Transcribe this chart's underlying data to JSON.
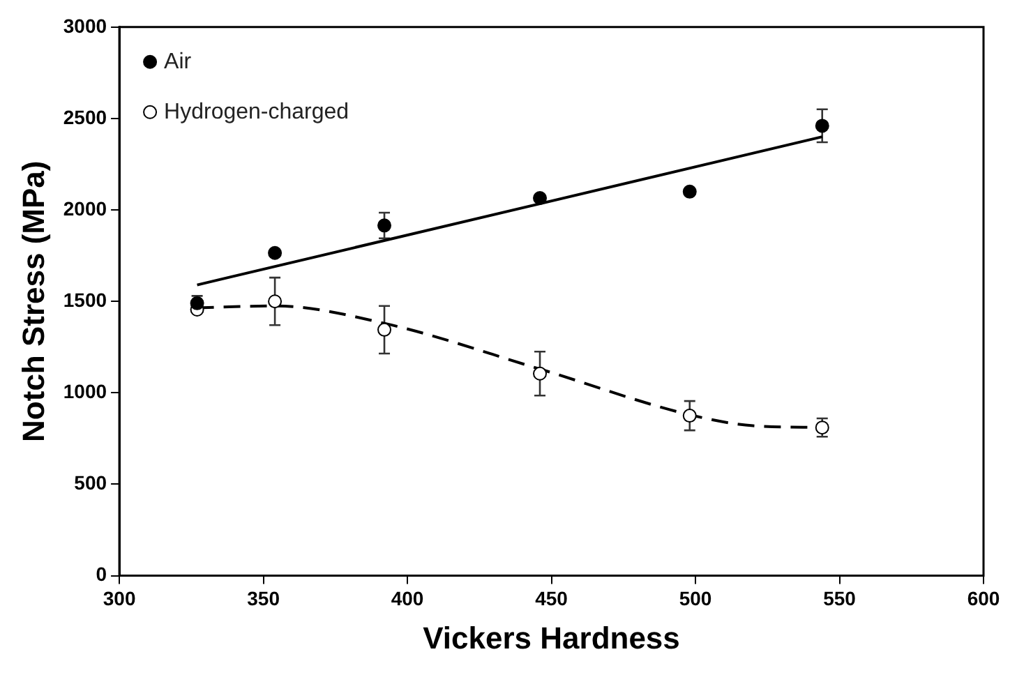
{
  "chart_data": {
    "type": "scatter",
    "xlabel": "Vickers Hardness",
    "ylabel": "Notch Stress (MPa)",
    "xlim": [
      300,
      600
    ],
    "xticks": [
      300,
      350,
      400,
      450,
      500,
      550,
      600
    ],
    "ylim": [
      0,
      3000
    ],
    "yticks": [
      0,
      500,
      1000,
      1500,
      2000,
      2500,
      3000
    ],
    "grid": false,
    "legend": "top left",
    "series": [
      {
        "name": "Air",
        "color": "#000000",
        "marker": "circle",
        "x": [
          327,
          354,
          392,
          446,
          498,
          544
        ],
        "values": [
          1490,
          1765,
          1915,
          2065,
          2100,
          2460
        ],
        "errors": [
          40,
          null,
          70,
          null,
          null,
          90
        ]
      },
      {
        "name": "Hydrogen-charged",
        "color": "#ffffff",
        "marker": "circle",
        "x": [
          327,
          354,
          392,
          446,
          498,
          544
        ],
        "values": [
          1455,
          1500,
          1345,
          1105,
          875,
          810
        ],
        "errors": [
          null,
          130,
          130,
          120,
          80,
          50
        ]
      },
      {
        "type": "line",
        "color": "#000000",
        "line_style": "solid",
        "marker": "none",
        "x": [
          327,
          544
        ],
        "values": [
          1590,
          2400
        ]
      },
      {
        "type": "line",
        "color": "#000000",
        "line_style": "dashed",
        "marker": "none",
        "x": [
          327,
          354,
          392,
          446,
          498,
          520,
          544
        ],
        "values": [
          1465,
          1475,
          1380,
          1130,
          880,
          820,
          810
        ]
      }
    ]
  }
}
